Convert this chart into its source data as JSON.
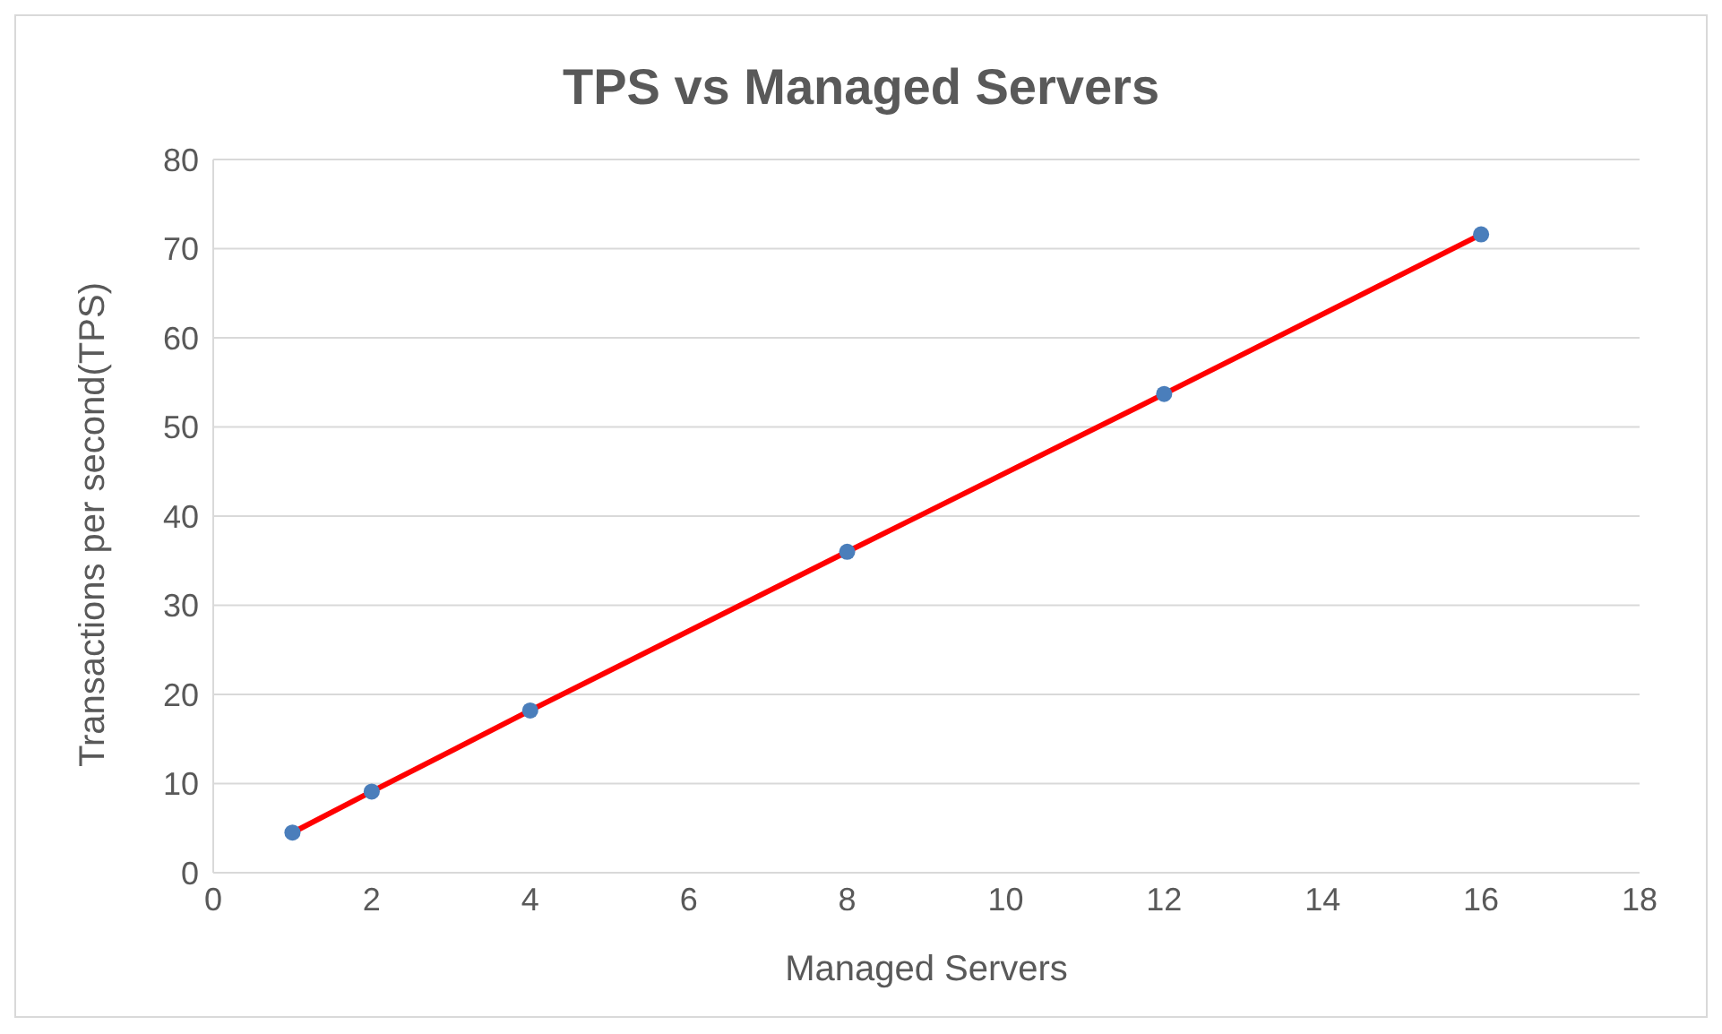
{
  "chart_data": {
    "type": "scatter",
    "title": "TPS vs Managed Servers",
    "xlabel": "Managed Servers",
    "ylabel": "Transactions per second(TPS)",
    "x": [
      1,
      2,
      4,
      8,
      12,
      16
    ],
    "series": [
      {
        "type": "line",
        "color": "#ff0000",
        "marker": "none",
        "values": [
          4.5,
          9.1,
          18.2,
          36,
          53.7,
          71.6
        ]
      },
      {
        "color": "#4a7ebb",
        "marker": "circle",
        "values": [
          4.5,
          9.1,
          18.2,
          36,
          53.7,
          71.6
        ]
      }
    ],
    "xlim": [
      0,
      18
    ],
    "xticks": [
      0,
      2,
      4,
      6,
      8,
      10,
      12,
      14,
      16,
      18
    ],
    "ylim": [
      0,
      80
    ],
    "yticks": [
      0,
      10,
      20,
      30,
      40,
      50,
      60,
      70,
      80
    ],
    "grid": "y"
  }
}
